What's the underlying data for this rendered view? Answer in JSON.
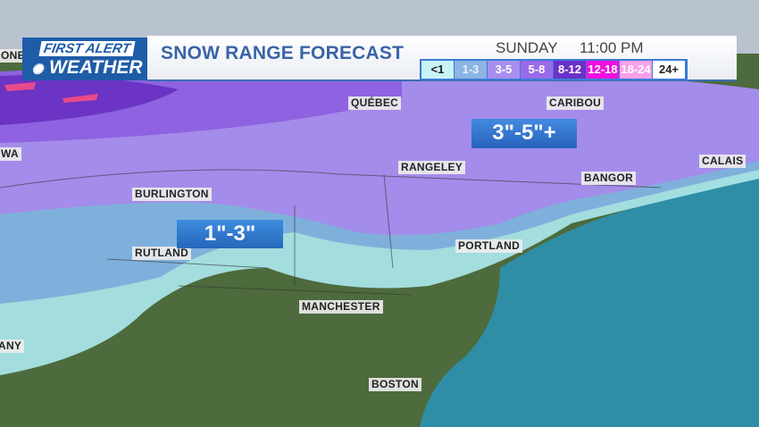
{
  "logo": {
    "line1": "FIRST ALERT",
    "line2": "WEATHER"
  },
  "header": {
    "title": "SNOW RANGE FORECAST",
    "day": "SUNDAY",
    "time": "11:00 PM"
  },
  "legend": [
    {
      "label": "<1",
      "color": "#c8f4f6",
      "text": "#222"
    },
    {
      "label": "1-3",
      "color": "#8ab4e2",
      "text": "#eef"
    },
    {
      "label": "3-5",
      "color": "#a88ef0",
      "text": "#fff"
    },
    {
      "label": "5-8",
      "color": "#9a6ae8",
      "text": "#fff"
    },
    {
      "label": "8-12",
      "color": "#6a32c8",
      "text": "#fff"
    },
    {
      "label": "12-18",
      "color": "#f010e0",
      "text": "#fff"
    },
    {
      "label": "18-24",
      "color": "#f8a0e8",
      "text": "#fff"
    },
    {
      "label": "24+",
      "color": "#ffffff",
      "text": "#222"
    }
  ],
  "cities": [
    "ONE",
    "WA",
    "ANY",
    "QUÉBEC",
    "CARIBOU",
    "CALAIS",
    "BANGOR",
    "RANGELEY",
    "BURLINGTON",
    "RUTLAND",
    "PORTLAND",
    "MANCHESTER",
    "BOSTON"
  ],
  "ranges": [
    "1\"-3\"",
    "3\"-5\"+"
  ]
}
